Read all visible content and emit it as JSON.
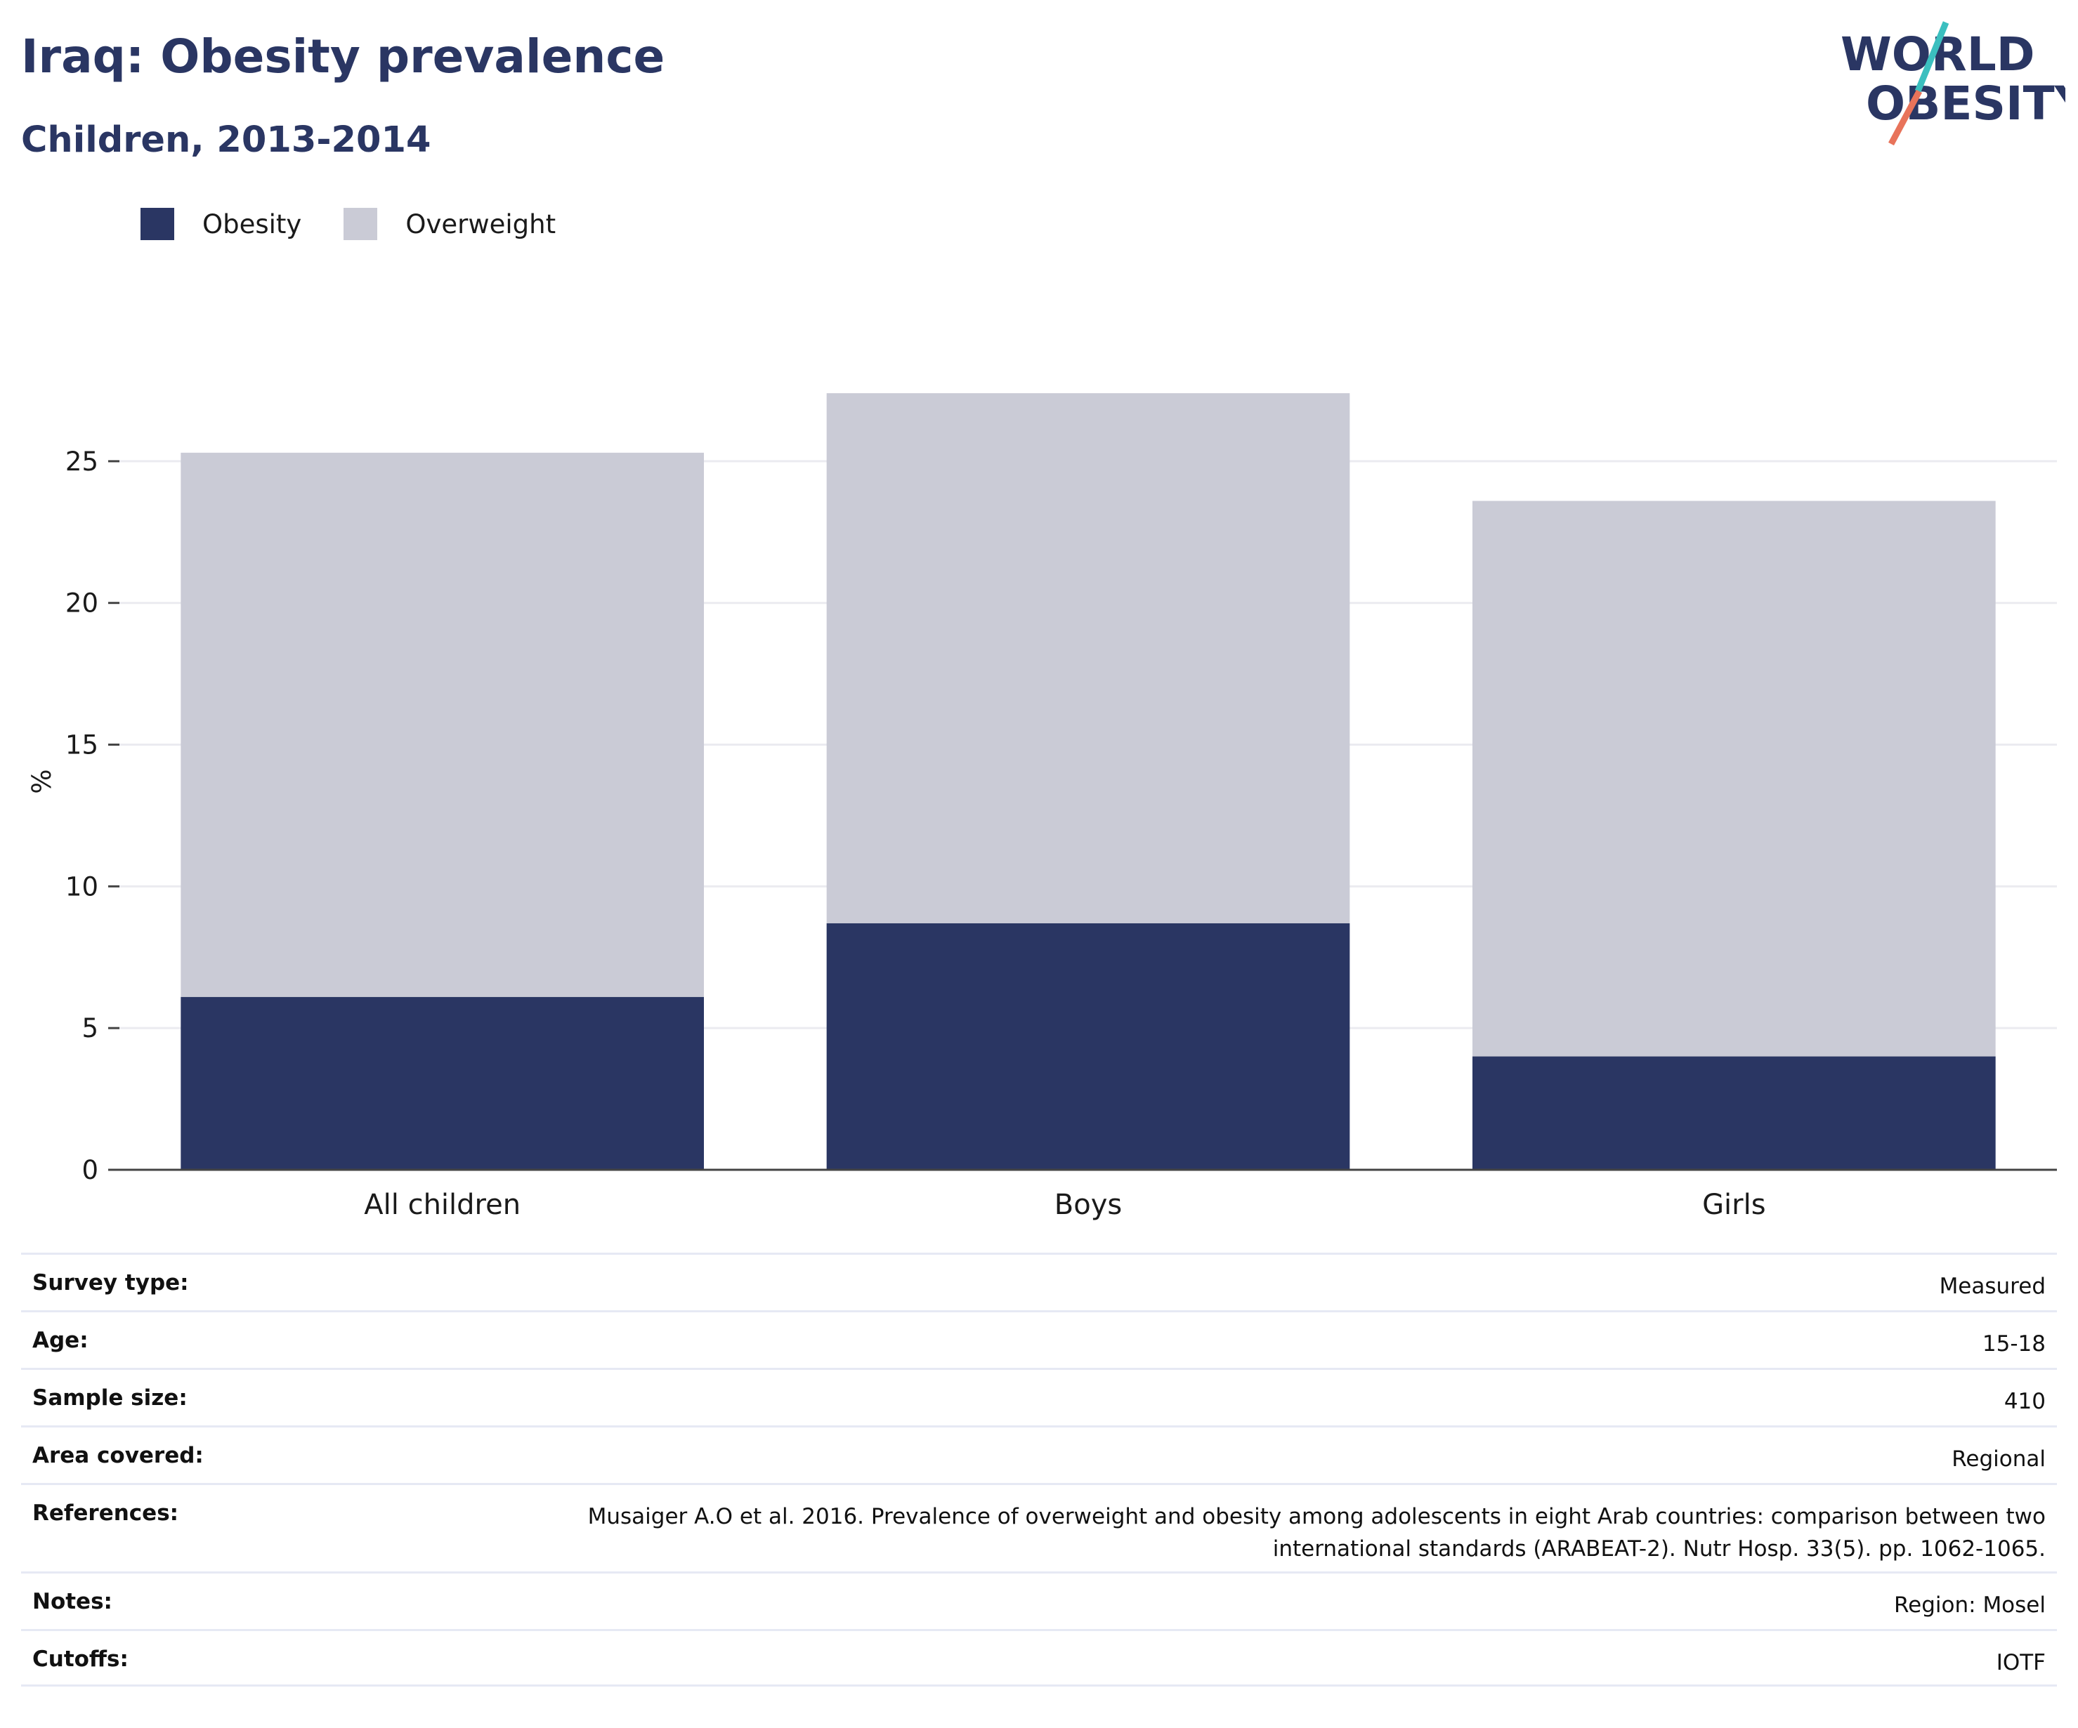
{
  "header": {
    "title": "Iraq: Obesity prevalence",
    "subtitle": "Children, 2013-2014"
  },
  "logo": {
    "line1": "WORLD",
    "line2": "OBESITY",
    "colors": {
      "navy": "#2a3663",
      "teal": "#3bbfbf",
      "coral": "#e8735a"
    }
  },
  "chart_data": {
    "type": "bar",
    "stacked": true,
    "categories": [
      "All children",
      "Boys",
      "Girls"
    ],
    "series": [
      {
        "name": "Obesity",
        "color": "#2a3663",
        "values": [
          6.1,
          8.7,
          4.0
        ]
      },
      {
        "name": "Overweight",
        "color": "#cacbd6",
        "values": [
          19.2,
          18.7,
          19.6
        ]
      }
    ],
    "totals": [
      25.3,
      27.4,
      23.6
    ],
    "ylabel": "%",
    "xlabel": "",
    "ylim": [
      0,
      27.4
    ],
    "yticks": [
      0,
      5,
      10,
      15,
      20,
      25
    ],
    "grid": true,
    "legend": "top-left"
  },
  "info": {
    "rows": [
      {
        "key": "Survey type:",
        "value": "Measured"
      },
      {
        "key": "Age:",
        "value": "15-18"
      },
      {
        "key": "Sample size:",
        "value": "410"
      },
      {
        "key": "Area covered:",
        "value": "Regional"
      },
      {
        "key": "References:",
        "value": "Musaiger A.O et al. 2016. Prevalence of overweight and obesity among adolescents in eight Arab countries: comparison between two international standards (ARABEAT-2). Nutr Hosp. 33(5). pp. 1062-1065."
      },
      {
        "key": "Notes:",
        "value": "Region: Mosel"
      },
      {
        "key": "Cutoffs:",
        "value": "IOTF"
      }
    ]
  }
}
